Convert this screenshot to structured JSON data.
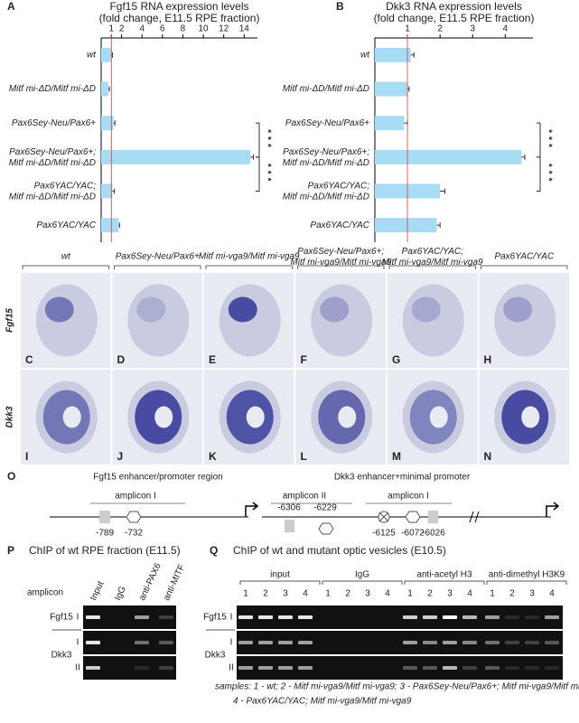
{
  "chart_data": [
    {
      "type": "hbar",
      "panel": "A",
      "title": "Fgf15 RNA expression levels",
      "subtitle": "(fold change, E11.5 RPE fraction)",
      "categories": [
        "wt",
        "Mitf mi-ΔD/Mitf mi-ΔD",
        "Pax6Sey-Neu/Pax6+",
        "Pax6Sey-Neu/Pax6+;\nMitf mi-ΔD/Mitf mi-ΔD",
        "Pax6YAC/YAC;\nMitf mi-ΔD/Mitf mi-ΔD",
        "Pax6YAC/YAC"
      ],
      "values": [
        1.0,
        0.7,
        1.2,
        14.6,
        1.1,
        1.7
      ],
      "errors": [
        0.1,
        0.1,
        0.15,
        0.3,
        0.2,
        0.1
      ],
      "color": "#a8dcf4",
      "reference_line": 1,
      "reference_color": "#e03a3a",
      "xlim": [
        0,
        15.3
      ],
      "xticks": [
        1,
        2,
        4,
        6,
        8,
        10,
        12,
        14
      ],
      "annotations": [
        "***",
        "***"
      ]
    },
    {
      "type": "hbar",
      "panel": "B",
      "title": "Dkk3 RNA expression levels",
      "subtitle": "(fold change, E11.5 RPE fraction)",
      "categories": [
        "wt",
        "Mitf mi-ΔD/Mitf mi-ΔD",
        "Pax6Sey-Neu/Pax6+",
        "Pax6Sey-Neu/Pax6+;\nMitf mi-ΔD/Mitf mi-ΔD",
        "Pax6YAC/YAC;\nMitf mi-ΔD/Mitf mi-ΔD",
        "Pax6YAC/YAC"
      ],
      "values": [
        1.1,
        1.0,
        0.9,
        4.5,
        2.0,
        1.9
      ],
      "errors": [
        0.1,
        0.05,
        0.1,
        0.1,
        0.15,
        0.1
      ],
      "color": "#a8dcf4",
      "reference_line": 1,
      "reference_color": "#e03a3a",
      "xlim": [
        0,
        4.85
      ],
      "xticks": [
        1,
        2,
        3,
        4
      ],
      "annotations": [
        "***",
        "***"
      ]
    }
  ],
  "figure": {
    "columns": [
      "wt",
      "Pax6Sey-Neu/Pax6+",
      "Mitf mi-vga9/Mitf mi-vga9",
      "Pax6Sey-Neu/Pax6+;\nMitf mi-vga9/Mitf mi-vga9",
      "Pax6YAC/YAC;\nMitf mi-vga9/Mitf mi-vga9",
      "Pax6YAC/YAC"
    ],
    "rows": [
      "Fgf15",
      "Dkk3"
    ],
    "panel_letters": [
      [
        "C",
        "D",
        "E",
        "F",
        "G",
        "H"
      ],
      [
        "I",
        "J",
        "K",
        "L",
        "M",
        "N"
      ]
    ],
    "O": {
      "letter": "O",
      "left_title": "Fgf15 enhancer/promoter region",
      "left_amplicon": "amplicon I",
      "left_sites": [
        "-789",
        "-732"
      ],
      "right_title": "Dkk3 enhancer+minimal promoter",
      "right_amplicons": [
        "amplicon II",
        "amplicon I"
      ],
      "right_sites": [
        "-6306",
        "-6229",
        "-6125",
        "-6072",
        "-6026"
      ]
    },
    "P": {
      "letter": "P",
      "title": "ChIP of wt RPE fraction (E11.5)",
      "amplicon_header": "amplicon",
      "lanes": [
        "Input",
        "IgG",
        "anti-PAX6",
        "anti-MITF"
      ],
      "rows": [
        {
          "gene": "Fgf15",
          "amplicon": "I"
        },
        {
          "gene": "Dkk3",
          "amplicon": "I"
        },
        {
          "amplicon": "II"
        }
      ]
    },
    "Q": {
      "letter": "Q",
      "title": "ChIP of wt and mutant optic vesicles (E10.5)",
      "groups": [
        "input",
        "IgG",
        "anti-acetyl H3",
        "anti-dimethyl H3K9"
      ],
      "lanes": [
        "1",
        "2",
        "3",
        "4"
      ],
      "rows": [
        {
          "gene": "Fgf15",
          "amplicon": "I"
        },
        {
          "gene": "Dkk3",
          "amplicon": "I"
        },
        {
          "amplicon": "II"
        }
      ],
      "samples": [
        "samples: 1 - wt; 2 - Mitf mi-vga9/Mitf mi-vga9; 3 - Pax6Sey-Neu/Pax6+; Mitf mi-vga9/Mitf mi-vga9,",
        "4 - Pax6YAC/YAC; Mitf mi-vga9/Mitf mi-vga9"
      ]
    }
  }
}
